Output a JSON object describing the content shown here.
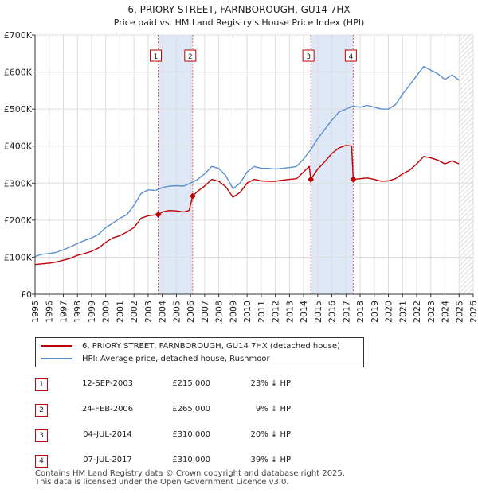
{
  "chart_data": {
    "type": "line",
    "title": "6, PRIORY STREET, FARNBOROUGH, GU14 7HX",
    "subtitle": "Price paid vs. HM Land Registry's House Price Index (HPI)",
    "xlabel": "",
    "ylabel": "",
    "xlim": [
      1995,
      2026
    ],
    "ylim": [
      0,
      700000
    ],
    "x_ticks": [
      1995,
      1996,
      1997,
      1998,
      1999,
      2000,
      2001,
      2002,
      2003,
      2004,
      2005,
      2006,
      2007,
      2008,
      2009,
      2010,
      2011,
      2012,
      2013,
      2014,
      2015,
      2016,
      2017,
      2018,
      2019,
      2020,
      2021,
      2022,
      2023,
      2024,
      2025,
      2026
    ],
    "y_ticks": [
      0,
      100000,
      200000,
      300000,
      400000,
      500000,
      600000,
      700000
    ],
    "y_tick_labels": [
      "£0",
      "£100K",
      "£200K",
      "£300K",
      "£400K",
      "£500K",
      "£600K",
      "£700K"
    ],
    "grid": true,
    "series": [
      {
        "name": "HPI: Average price, detached house, Rushmoor",
        "color": "#5b8fcf",
        "points": [
          [
            1995.0,
            102000
          ],
          [
            1995.5,
            108000
          ],
          [
            1996.0,
            110000
          ],
          [
            1996.5,
            113000
          ],
          [
            1997.0,
            120000
          ],
          [
            1997.5,
            128000
          ],
          [
            1998.0,
            137000
          ],
          [
            1998.5,
            145000
          ],
          [
            1999.0,
            152000
          ],
          [
            1999.5,
            162000
          ],
          [
            2000.0,
            180000
          ],
          [
            2000.5,
            192000
          ],
          [
            2001.0,
            205000
          ],
          [
            2001.5,
            215000
          ],
          [
            2002.0,
            240000
          ],
          [
            2002.5,
            272000
          ],
          [
            2003.0,
            282000
          ],
          [
            2003.5,
            280000
          ],
          [
            2004.0,
            288000
          ],
          [
            2004.5,
            292000
          ],
          [
            2005.0,
            293000
          ],
          [
            2005.5,
            292000
          ],
          [
            2006.0,
            300000
          ],
          [
            2006.5,
            310000
          ],
          [
            2007.0,
            325000
          ],
          [
            2007.5,
            345000
          ],
          [
            2008.0,
            340000
          ],
          [
            2008.5,
            320000
          ],
          [
            2009.0,
            285000
          ],
          [
            2009.5,
            300000
          ],
          [
            2010.0,
            330000
          ],
          [
            2010.5,
            345000
          ],
          [
            2011.0,
            340000
          ],
          [
            2011.5,
            340000
          ],
          [
            2012.0,
            338000
          ],
          [
            2012.5,
            340000
          ],
          [
            2013.0,
            342000
          ],
          [
            2013.5,
            345000
          ],
          [
            2014.0,
            365000
          ],
          [
            2014.5,
            390000
          ],
          [
            2015.0,
            420000
          ],
          [
            2015.5,
            445000
          ],
          [
            2016.0,
            470000
          ],
          [
            2016.5,
            492000
          ],
          [
            2017.0,
            500000
          ],
          [
            2017.5,
            508000
          ],
          [
            2018.0,
            505000
          ],
          [
            2018.5,
            510000
          ],
          [
            2019.0,
            505000
          ],
          [
            2019.5,
            500000
          ],
          [
            2020.0,
            500000
          ],
          [
            2020.5,
            512000
          ],
          [
            2021.0,
            540000
          ],
          [
            2021.5,
            565000
          ],
          [
            2022.0,
            590000
          ],
          [
            2022.5,
            615000
          ],
          [
            2023.0,
            605000
          ],
          [
            2023.5,
            595000
          ],
          [
            2024.0,
            580000
          ],
          [
            2024.5,
            592000
          ],
          [
            2025.0,
            578000
          ]
        ]
      },
      {
        "name": "6, PRIORY STREET, FARNBOROUGH, GU14 7HX (detached house)",
        "color": "#c00000",
        "points": [
          [
            1995.0,
            80000
          ],
          [
            1995.5,
            82000
          ],
          [
            1996.0,
            84000
          ],
          [
            1996.5,
            87000
          ],
          [
            1997.0,
            92000
          ],
          [
            1997.5,
            97000
          ],
          [
            1998.0,
            105000
          ],
          [
            1998.5,
            110000
          ],
          [
            1999.0,
            116000
          ],
          [
            1999.5,
            125000
          ],
          [
            2000.0,
            140000
          ],
          [
            2000.5,
            152000
          ],
          [
            2001.0,
            158000
          ],
          [
            2001.5,
            168000
          ],
          [
            2002.0,
            180000
          ],
          [
            2002.5,
            205000
          ],
          [
            2003.0,
            212000
          ],
          [
            2003.71,
            215000
          ],
          [
            2004.0,
            222000
          ],
          [
            2004.5,
            226000
          ],
          [
            2005.0,
            225000
          ],
          [
            2005.5,
            222000
          ],
          [
            2005.9,
            226000
          ],
          [
            2006.15,
            265000
          ],
          [
            2006.5,
            278000
          ],
          [
            2007.0,
            292000
          ],
          [
            2007.5,
            310000
          ],
          [
            2008.0,
            305000
          ],
          [
            2008.5,
            290000
          ],
          [
            2009.0,
            262000
          ],
          [
            2009.5,
            275000
          ],
          [
            2010.0,
            300000
          ],
          [
            2010.5,
            310000
          ],
          [
            2011.0,
            306000
          ],
          [
            2011.5,
            305000
          ],
          [
            2012.0,
            305000
          ],
          [
            2012.5,
            308000
          ],
          [
            2013.0,
            310000
          ],
          [
            2013.5,
            312000
          ],
          [
            2014.0,
            330000
          ],
          [
            2014.4,
            345000
          ],
          [
            2014.51,
            310000
          ],
          [
            2015.0,
            338000
          ],
          [
            2015.5,
            358000
          ],
          [
            2016.0,
            380000
          ],
          [
            2016.5,
            395000
          ],
          [
            2017.0,
            402000
          ],
          [
            2017.4,
            400000
          ],
          [
            2017.51,
            310000
          ],
          [
            2018.0,
            312000
          ],
          [
            2018.5,
            314000
          ],
          [
            2019.0,
            310000
          ],
          [
            2019.5,
            305000
          ],
          [
            2020.0,
            306000
          ],
          [
            2020.5,
            312000
          ],
          [
            2021.0,
            325000
          ],
          [
            2021.5,
            335000
          ],
          [
            2022.0,
            352000
          ],
          [
            2022.5,
            372000
          ],
          [
            2023.0,
            368000
          ],
          [
            2023.5,
            362000
          ],
          [
            2024.0,
            352000
          ],
          [
            2024.5,
            360000
          ],
          [
            2025.0,
            352000
          ]
        ]
      }
    ],
    "sales": [
      {
        "label": "1",
        "x": 2003.71,
        "value": 215000
      },
      {
        "label": "2",
        "x": 2006.15,
        "value": 265000
      },
      {
        "label": "3",
        "x": 2014.51,
        "value": 310000
      },
      {
        "label": "4",
        "x": 2017.51,
        "value": 310000
      }
    ],
    "shaded_ranges": [
      [
        2003.71,
        2006.15
      ],
      [
        2014.51,
        2017.51
      ]
    ],
    "hatched_range": [
      2025.0,
      2026.0
    ]
  },
  "legend": {
    "property_label": "6, PRIORY STREET, FARNBOROUGH, GU14 7HX (detached house)",
    "hpi_label": "HPI: Average price, detached house, Rushmoor"
  },
  "transactions": [
    {
      "num": "1",
      "date": "12-SEP-2003",
      "price": "£215,000",
      "hpi": "23% ↓ HPI"
    },
    {
      "num": "2",
      "date": "24-FEB-2006",
      "price": "£265,000",
      "hpi": "9% ↓ HPI"
    },
    {
      "num": "3",
      "date": "04-JUL-2014",
      "price": "£310,000",
      "hpi": "20% ↓ HPI"
    },
    {
      "num": "4",
      "date": "07-JUL-2017",
      "price": "£310,000",
      "hpi": "39% ↓ HPI"
    }
  ],
  "footer": {
    "line1": "Contains HM Land Registry data © Crown copyright and database right 2025.",
    "line2": "This data is licensed under the Open Government Licence v3.0."
  },
  "colors": {
    "property": "#c00000",
    "hpi": "#5b8fcf",
    "shade": "#dfe8f7"
  }
}
